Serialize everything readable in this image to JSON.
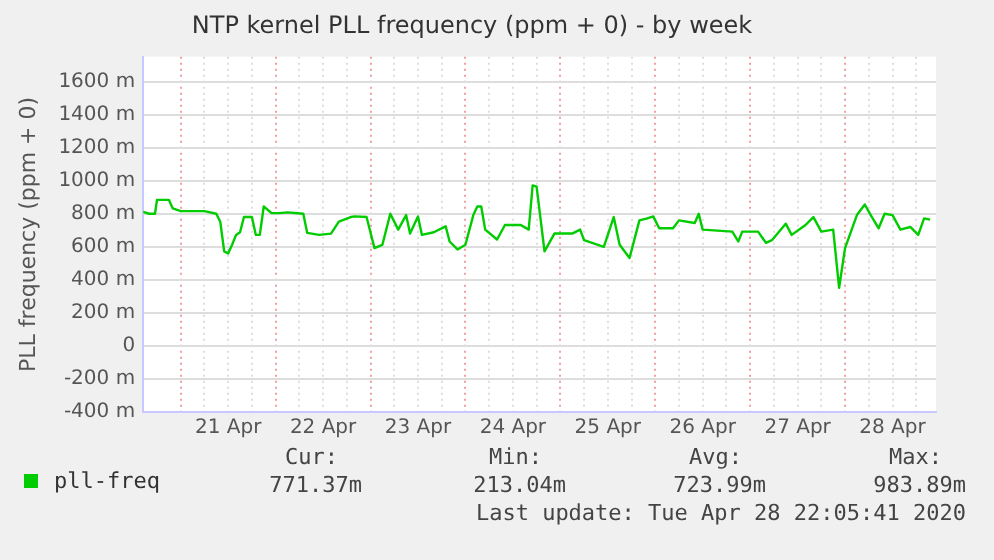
{
  "chart_data": {
    "type": "line",
    "title": "NTP kernel PLL frequency (ppm + 0) - by week",
    "ylabel": "PLL frequency (ppm + 0)",
    "x": [
      "2020-04-20T14:30",
      "2020-04-20T16:00",
      "2020-04-20T17:30",
      "2020-04-20T18:00",
      "2020-04-20T21:00",
      "2020-04-20T22:00",
      "2020-04-21T00:00",
      "2020-04-21T06:00",
      "2020-04-21T09:00",
      "2020-04-21T10:00",
      "2020-04-21T11:00",
      "2020-04-21T12:00",
      "2020-04-21T13:00",
      "2020-04-21T14:00",
      "2020-04-21T15:00",
      "2020-04-21T16:00",
      "2020-04-21T18:00",
      "2020-04-21T19:00",
      "2020-04-21T20:00",
      "2020-04-21T21:00",
      "2020-04-21T23:00",
      "2020-04-22T01:00",
      "2020-04-22T03:00",
      "2020-04-22T07:00",
      "2020-04-22T08:00",
      "2020-04-22T11:00",
      "2020-04-22T14:00",
      "2020-04-22T16:00",
      "2020-04-22T19:00",
      "2020-04-22T20:00",
      "2020-04-22T23:00",
      "2020-04-23T01:00",
      "2020-04-23T03:00",
      "2020-04-23T05:00",
      "2020-04-23T07:00",
      "2020-04-23T09:00",
      "2020-04-23T10:00",
      "2020-04-23T12:00",
      "2020-04-23T13:00",
      "2020-04-23T16:00",
      "2020-04-23T19:00",
      "2020-04-23T20:00",
      "2020-04-23T22:00",
      "2020-04-24T00:00",
      "2020-04-24T02:00",
      "2020-04-24T03:00",
      "2020-04-24T04:00",
      "2020-04-24T05:00",
      "2020-04-24T08:00",
      "2020-04-24T10:00",
      "2020-04-24T14:00",
      "2020-04-24T16:00",
      "2020-04-24T17:00",
      "2020-04-24T18:00",
      "2020-04-24T20:00",
      "2020-04-24T22:30",
      "2020-04-25T03:00",
      "2020-04-25T05:00",
      "2020-04-25T06:00",
      "2020-04-25T11:00",
      "2020-04-25T13:30",
      "2020-04-25T15:00",
      "2020-04-25T17:30",
      "2020-04-25T20:00",
      "2020-04-25T22:00",
      "2020-04-25T23:30",
      "2020-04-26T01:00",
      "2020-04-26T04:30",
      "2020-04-26T06:00",
      "2020-04-26T10:00",
      "2020-04-26T11:00",
      "2020-04-26T12:00",
      "2020-04-26T19:30",
      "2020-04-26T21:00",
      "2020-04-26T22:00",
      "2020-04-27T02:00",
      "2020-04-27T04:00",
      "2020-04-27T05:30",
      "2020-04-27T09:00",
      "2020-04-27T10:30",
      "2020-04-27T14:00",
      "2020-04-27T16:00",
      "2020-04-27T18:00",
      "2020-04-27T21:00",
      "2020-04-27T22:30",
      "2020-04-28T00:00",
      "2020-04-28T03:00",
      "2020-04-28T05:00",
      "2020-04-28T06:30",
      "2020-04-28T08:30",
      "2020-04-28T10:00",
      "2020-04-28T12:00",
      "2020-04-28T14:00",
      "2020-04-28T16:30",
      "2020-04-28T18:30",
      "2020-04-28T20:00",
      "2020-04-28T21:30"
    ],
    "series": [
      {
        "name": "pll-freq",
        "color": "#00cc00",
        "values": [
          812,
          800,
          800,
          884,
          884,
          832,
          816,
          816,
          800,
          752,
          572,
          560,
          612,
          672,
          688,
          780,
          780,
          672,
          672,
          844,
          804,
          804,
          808,
          800,
          684,
          672,
          680,
          752,
          780,
          784,
          780,
          592,
          612,
          800,
          704,
          792,
          680,
          784,
          672,
          688,
          724,
          632,
          584,
          612,
          792,
          844,
          844,
          704,
          644,
          732,
          732,
          704,
          972,
          964,
          572,
          680,
          680,
          704,
          640,
          600,
          780,
          612,
          532,
          760,
          772,
          784,
          712,
          712,
          760,
          744,
          800,
          704,
          692,
          632,
          692,
          692,
          624,
          640,
          740,
          672,
          732,
          780,
          692,
          704,
          352,
          592,
          792,
          856,
          792,
          712,
          800,
          792,
          704,
          720,
          672,
          772,
          764
        ]
      }
    ],
    "xlim": [
      "2020-04-20T14:30",
      "2020-04-28T23:00"
    ],
    "xticks": [
      {
        "value": "2020-04-21T00:00",
        "label": null
      },
      {
        "value": "2020-04-21T06:00",
        "label": null
      },
      {
        "value": "2020-04-21T12:00",
        "label": "21 Apr"
      },
      {
        "value": "2020-04-21T18:00",
        "label": null
      },
      {
        "value": "2020-04-22T00:00",
        "label": null
      },
      {
        "value": "2020-04-22T06:00",
        "label": null
      },
      {
        "value": "2020-04-22T12:00",
        "label": "22 Apr"
      },
      {
        "value": "2020-04-22T18:00",
        "label": null
      },
      {
        "value": "2020-04-23T00:00",
        "label": null
      },
      {
        "value": "2020-04-23T06:00",
        "label": null
      },
      {
        "value": "2020-04-23T12:00",
        "label": "23 Apr"
      },
      {
        "value": "2020-04-23T18:00",
        "label": null
      },
      {
        "value": "2020-04-24T00:00",
        "label": null
      },
      {
        "value": "2020-04-24T06:00",
        "label": null
      },
      {
        "value": "2020-04-24T12:00",
        "label": "24 Apr"
      },
      {
        "value": "2020-04-24T18:00",
        "label": null
      },
      {
        "value": "2020-04-25T00:00",
        "label": null
      },
      {
        "value": "2020-04-25T06:00",
        "label": null
      },
      {
        "value": "2020-04-25T12:00",
        "label": "25 Apr"
      },
      {
        "value": "2020-04-25T18:00",
        "label": null
      },
      {
        "value": "2020-04-26T00:00",
        "label": null
      },
      {
        "value": "2020-04-26T06:00",
        "label": null
      },
      {
        "value": "2020-04-26T12:00",
        "label": "26 Apr"
      },
      {
        "value": "2020-04-26T18:00",
        "label": null
      },
      {
        "value": "2020-04-27T00:00",
        "label": null
      },
      {
        "value": "2020-04-27T06:00",
        "label": null
      },
      {
        "value": "2020-04-27T12:00",
        "label": "27 Apr"
      },
      {
        "value": "2020-04-27T18:00",
        "label": null
      },
      {
        "value": "2020-04-28T00:00",
        "label": null
      },
      {
        "value": "2020-04-28T06:00",
        "label": null
      },
      {
        "value": "2020-04-28T12:00",
        "label": "28 Apr"
      },
      {
        "value": "2020-04-28T18:00",
        "label": null
      }
    ],
    "ylim": [
      -400,
      1750
    ],
    "yticks": [
      {
        "value": -400,
        "label": "-400 m"
      },
      {
        "value": -200,
        "label": "-200 m"
      },
      0,
      {
        "value": 200,
        "label": "200 m"
      },
      {
        "value": 400,
        "label": "400 m"
      },
      {
        "value": 600,
        "label": "600 m"
      },
      {
        "value": 800,
        "label": "800 m"
      },
      {
        "value": 1000,
        "label": "1000 m"
      },
      {
        "value": 1200,
        "label": "1200 m"
      },
      {
        "value": 1400,
        "label": "1400 m"
      },
      {
        "value": 1600,
        "label": "1600 m"
      }
    ],
    "grid": true,
    "legend": "bottom left",
    "marker": "none",
    "line_style": "solid",
    "annotations": [
      "Cur:",
      "Min:",
      "Avg:",
      "Max:",
      "771.37m",
      "213.04m",
      "723.99m",
      "983.89m",
      "Last update: Tue Apr 28 22:05:41 2020"
    ]
  }
}
